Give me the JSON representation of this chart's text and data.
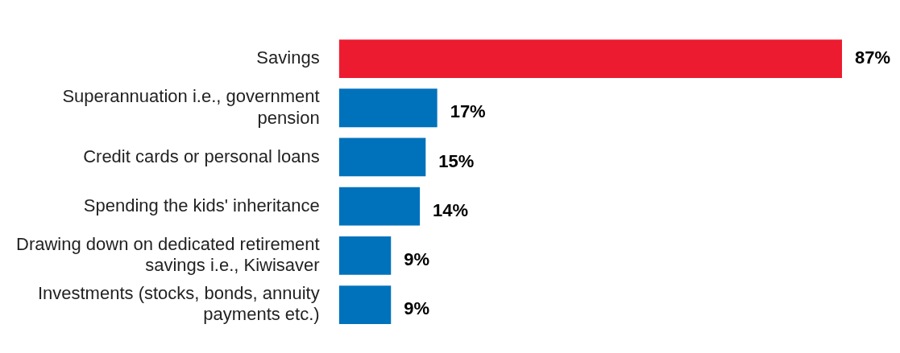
{
  "chart_data": {
    "type": "bar",
    "orientation": "horizontal",
    "categories": [
      "Savings",
      "Superannuation i.e., government pension",
      "Credit cards or personal loans",
      "Spending the kids' inheritance",
      "Drawing down on dedicated retirement savings i.e., Kiwisaver",
      "Investments (stocks, bonds, annuity payments etc.)"
    ],
    "values": [
      87,
      17,
      15,
      14,
      9,
      9
    ],
    "colors": [
      "#ed1b2f",
      "#0072bc",
      "#0072bc",
      "#0072bc",
      "#0072bc",
      "#0072bc"
    ],
    "value_labels": [
      "87%",
      "17%",
      "15%",
      "14%",
      "9%",
      "9%"
    ],
    "legend": false
  }
}
